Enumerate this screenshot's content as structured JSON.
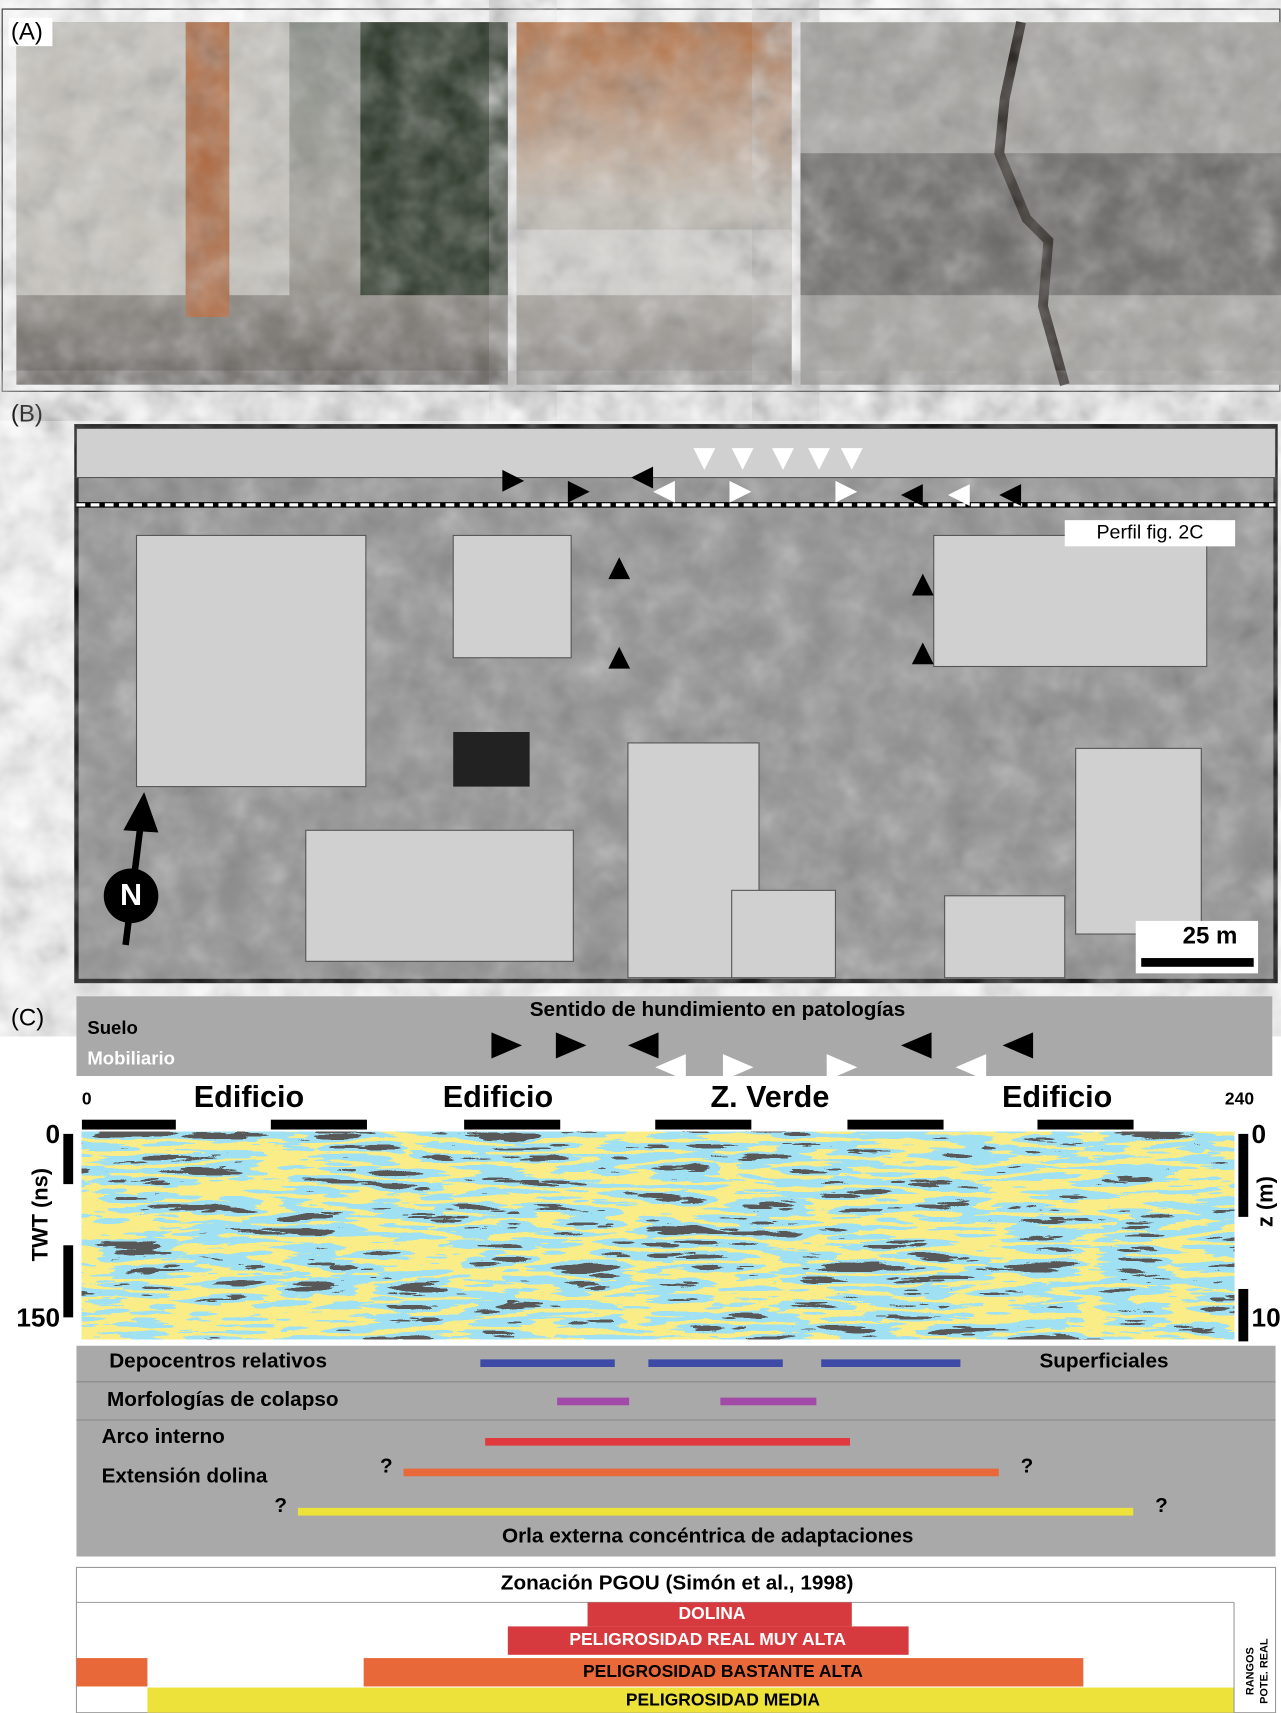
{
  "panels": {
    "a_label": "(A)",
    "b_label": "(B)",
    "c_label": "(C)"
  },
  "aerial": {
    "profile_label": "Perfil fig. 2C",
    "scale_label": "25 m",
    "north": "N"
  },
  "profile": {
    "title": "Sentido de hundimiento en patologías",
    "legend_ground": "Suelo",
    "legend_furniture": "Mobiliario",
    "xlim": [
      0,
      240
    ],
    "zones": [
      "Edificio",
      "Edificio",
      "Z. Verde",
      "Edificio"
    ],
    "twt_ticks": [
      0,
      150
    ],
    "twt_label": "TWT (ns)",
    "depth_ticks": [
      0,
      10
    ],
    "depth_label": "z (m)"
  },
  "indicators": [
    {
      "label": "Depocentros relativos",
      "note": "Superficiales",
      "color": "#3d4ba6",
      "segments": [
        [
          83,
          111
        ],
        [
          118,
          146
        ],
        [
          154,
          183
        ]
      ]
    },
    {
      "label": "Morfologías de colapso",
      "color": "#a24aa8",
      "segments": [
        [
          99,
          114
        ],
        [
          133,
          153
        ]
      ]
    },
    {
      "label": "Arco interno",
      "color": "#e03a3e",
      "segments": [
        [
          84,
          160
        ]
      ]
    },
    {
      "label": "Extensión dolina",
      "start_mark": "?",
      "end_mark": "?",
      "color": "#e8683a",
      "segments": [
        [
          67,
          191
        ]
      ]
    },
    {
      "label": "Orla externa concéntrica de adaptaciones",
      "start_mark": "?",
      "end_mark": "?",
      "color": "#ece23a",
      "segments": [
        [
          45,
          219
        ]
      ]
    }
  ],
  "zonation": {
    "title": "Zonación PGOU (Simón et al., 1998)",
    "dolina": "DOLINA",
    "very_high": "PELIGROSIDAD REAL MUY ALTA",
    "quite_high": "PELIGROSIDAD BASTANTE  ALTA",
    "medium": "PELIGROSIDAD MEDIA",
    "side_1": "RANGOS",
    "side_2": "POTE. REAL"
  }
}
